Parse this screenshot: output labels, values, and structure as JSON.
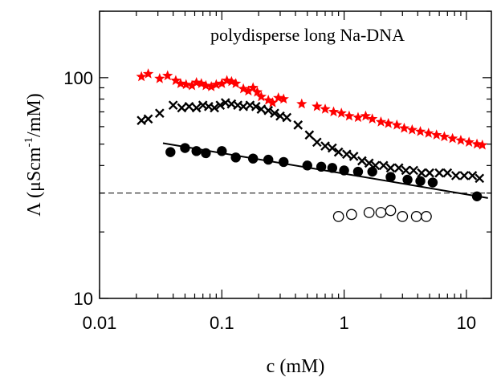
{
  "chart_data": {
    "type": "scatter",
    "title": "polydisperse long Na-DNA",
    "xlabel": "c (mM)",
    "ylabel_main": "Λ (μScm",
    "ylabel_sup": "-1",
    "ylabel_tail": "/mM)",
    "x_scale": "log",
    "y_scale": "log",
    "xlim": [
      0.01,
      16
    ],
    "ylim": [
      10,
      200
    ],
    "x_ticks": [
      {
        "value": 0.01,
        "label": "0.01"
      },
      {
        "value": 0.1,
        "label": "0.1"
      },
      {
        "value": 1,
        "label": "1"
      },
      {
        "value": 10,
        "label": "10"
      }
    ],
    "y_ticks": [
      {
        "value": 10,
        "label": "10"
      },
      {
        "value": 100,
        "label": "100"
      }
    ],
    "reference_line": {
      "y": 30,
      "style": "dashed"
    },
    "colors": {
      "stars": "#ff0000",
      "crosses": "#000000",
      "filled": "#000000",
      "open": "#000000"
    },
    "series": [
      {
        "marker": "star",
        "points": [
          [
            0.022,
            101
          ],
          [
            0.025,
            104
          ],
          [
            0.031,
            99
          ],
          [
            0.036,
            102
          ],
          [
            0.042,
            97
          ],
          [
            0.046,
            94
          ],
          [
            0.051,
            93
          ],
          [
            0.057,
            92
          ],
          [
            0.062,
            95
          ],
          [
            0.068,
            94
          ],
          [
            0.074,
            92
          ],
          [
            0.082,
            91
          ],
          [
            0.09,
            93
          ],
          [
            0.1,
            94
          ],
          [
            0.11,
            97
          ],
          [
            0.12,
            96
          ],
          [
            0.13,
            94
          ],
          [
            0.15,
            89
          ],
          [
            0.165,
            87
          ],
          [
            0.18,
            90
          ],
          [
            0.195,
            86
          ],
          [
            0.21,
            82
          ],
          [
            0.24,
            79
          ],
          [
            0.26,
            77
          ],
          [
            0.29,
            81
          ],
          [
            0.32,
            80
          ],
          [
            0.45,
            76
          ],
          [
            0.6,
            74
          ],
          [
            0.7,
            72
          ],
          [
            0.82,
            70
          ],
          [
            0.95,
            69
          ],
          [
            1.1,
            67
          ],
          [
            1.3,
            66
          ],
          [
            1.5,
            67
          ],
          [
            1.7,
            65
          ],
          [
            2.0,
            63
          ],
          [
            2.3,
            62
          ],
          [
            2.7,
            61
          ],
          [
            3.1,
            59
          ],
          [
            3.6,
            58
          ],
          [
            4.2,
            57
          ],
          [
            4.9,
            56
          ],
          [
            5.7,
            55
          ],
          [
            6.6,
            54
          ],
          [
            7.7,
            53
          ],
          [
            9.0,
            52
          ],
          [
            10.5,
            51
          ],
          [
            12.2,
            50
          ],
          [
            13.5,
            49.5
          ]
        ]
      },
      {
        "marker": "cross",
        "points": [
          [
            0.022,
            64
          ],
          [
            0.025,
            65
          ],
          [
            0.031,
            69
          ],
          [
            0.04,
            75
          ],
          [
            0.047,
            73
          ],
          [
            0.054,
            74
          ],
          [
            0.062,
            73
          ],
          [
            0.07,
            75
          ],
          [
            0.078,
            74
          ],
          [
            0.087,
            73
          ],
          [
            0.097,
            75
          ],
          [
            0.107,
            77
          ],
          [
            0.12,
            76
          ],
          [
            0.135,
            75
          ],
          [
            0.15,
            74
          ],
          [
            0.17,
            75
          ],
          [
            0.19,
            74
          ],
          [
            0.21,
            72
          ],
          [
            0.24,
            71
          ],
          [
            0.27,
            69
          ],
          [
            0.3,
            67
          ],
          [
            0.34,
            66
          ],
          [
            0.42,
            61
          ],
          [
            0.52,
            55
          ],
          [
            0.6,
            51
          ],
          [
            0.7,
            49
          ],
          [
            0.8,
            48
          ],
          [
            0.9,
            46
          ],
          [
            1.05,
            45
          ],
          [
            1.2,
            44
          ],
          [
            1.4,
            42
          ],
          [
            1.6,
            41
          ],
          [
            1.8,
            40
          ],
          [
            2.1,
            40
          ],
          [
            2.4,
            39
          ],
          [
            2.8,
            39
          ],
          [
            3.2,
            38
          ],
          [
            3.7,
            38
          ],
          [
            4.3,
            37
          ],
          [
            5.0,
            37
          ],
          [
            6.0,
            37
          ],
          [
            7.0,
            37
          ],
          [
            8.2,
            36
          ],
          [
            9.6,
            36
          ],
          [
            11.2,
            36
          ],
          [
            12.8,
            35
          ]
        ]
      },
      {
        "marker": "filled-circle",
        "points": [
          [
            0.038,
            46
          ],
          [
            0.05,
            48
          ],
          [
            0.062,
            46.5
          ],
          [
            0.074,
            45.5
          ],
          [
            0.1,
            46.5
          ],
          [
            0.13,
            43.5
          ],
          [
            0.18,
            43
          ],
          [
            0.24,
            42.5
          ],
          [
            0.32,
            41.5
          ],
          [
            0.5,
            40
          ],
          [
            0.65,
            39.5
          ],
          [
            0.8,
            39
          ],
          [
            1.0,
            38
          ],
          [
            1.3,
            37.5
          ],
          [
            1.7,
            37.5
          ],
          [
            2.4,
            35.5
          ],
          [
            3.3,
            34.5
          ],
          [
            4.2,
            34
          ],
          [
            5.3,
            33.5
          ],
          [
            12.2,
            29
          ]
        ]
      },
      {
        "marker": "open-circle",
        "points": [
          [
            0.9,
            23.5
          ],
          [
            1.15,
            24
          ],
          [
            1.6,
            24.5
          ],
          [
            2.0,
            24.5
          ],
          [
            2.4,
            25
          ],
          [
            3.0,
            23.5
          ],
          [
            3.9,
            23.5
          ],
          [
            4.7,
            23.5
          ]
        ]
      }
    ],
    "fit_line": {
      "x": [
        0.033,
        15
      ],
      "y": [
        50.5,
        28.5
      ]
    }
  }
}
